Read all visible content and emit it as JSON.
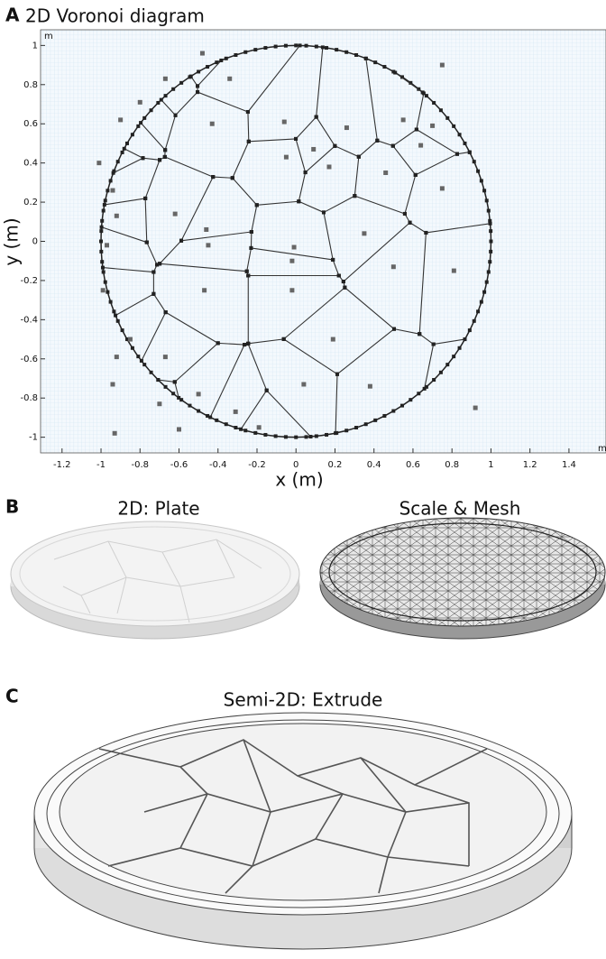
{
  "panel_a": {
    "label": "A",
    "title": "2D Voronoi diagram",
    "x_label": "x (m)",
    "y_label": "y (m)",
    "x_unit": "m",
    "y_unit": "m",
    "xlim": [
      -1.31,
      1.59
    ],
    "ylim": [
      -1.08,
      1.08
    ],
    "xticks": [
      -1.2,
      -1,
      -0.8,
      -0.6,
      -0.4,
      -0.2,
      0,
      0.2,
      0.4,
      0.6,
      0.8,
      1,
      1.2,
      1.4
    ],
    "yticks": [
      -1,
      -0.8,
      -0.6,
      -0.4,
      -0.2,
      0,
      0.2,
      0.4,
      0.6,
      0.8,
      1
    ],
    "boundary_radius": 1,
    "seeds": [
      [
        -0.48,
        0.96
      ],
      [
        -0.67,
        0.83
      ],
      [
        -0.34,
        0.83
      ],
      [
        -0.8,
        0.71
      ],
      [
        0.75,
        0.9
      ],
      [
        -0.9,
        0.62
      ],
      [
        -0.43,
        0.6
      ],
      [
        -0.06,
        0.61
      ],
      [
        0.26,
        0.58
      ],
      [
        0.7,
        0.59
      ],
      [
        -1.01,
        0.4
      ],
      [
        -0.05,
        0.43
      ],
      [
        0.09,
        0.47
      ],
      [
        0.17,
        0.38
      ],
      [
        0.46,
        0.35
      ],
      [
        0.64,
        0.49
      ],
      [
        0.75,
        0.27
      ],
      [
        -0.94,
        0.26
      ],
      [
        -0.92,
        0.13
      ],
      [
        -0.62,
        0.14
      ],
      [
        -0.46,
        0.06
      ],
      [
        0.35,
        0.04
      ],
      [
        -0.97,
        -0.02
      ],
      [
        -0.45,
        -0.02
      ],
      [
        -0.01,
        -0.03
      ],
      [
        -0.02,
        -0.1
      ],
      [
        0.5,
        -0.13
      ],
      [
        0.81,
        -0.15
      ],
      [
        -0.99,
        -0.25
      ],
      [
        -0.47,
        -0.25
      ],
      [
        -0.02,
        -0.25
      ],
      [
        -0.85,
        -0.5
      ],
      [
        -0.92,
        -0.59
      ],
      [
        -0.67,
        -0.59
      ],
      [
        0.19,
        -0.5
      ],
      [
        -0.94,
        -0.73
      ],
      [
        0.04,
        -0.73
      ],
      [
        0.38,
        -0.74
      ],
      [
        -0.7,
        -0.83
      ],
      [
        -0.5,
        -0.78
      ],
      [
        -0.31,
        -0.87
      ],
      [
        -0.6,
        -0.96
      ],
      [
        -0.19,
        -0.95
      ],
      [
        -0.93,
        -0.98
      ],
      [
        0.92,
        -0.85
      ],
      [
        0.55,
        0.62
      ]
    ]
  },
  "panel_b": {
    "label": "B",
    "left_title": "2D: Plate",
    "right_title": "Scale & Mesh"
  },
  "panel_c": {
    "label": "C",
    "title": "Semi-2D: Extrude"
  }
}
